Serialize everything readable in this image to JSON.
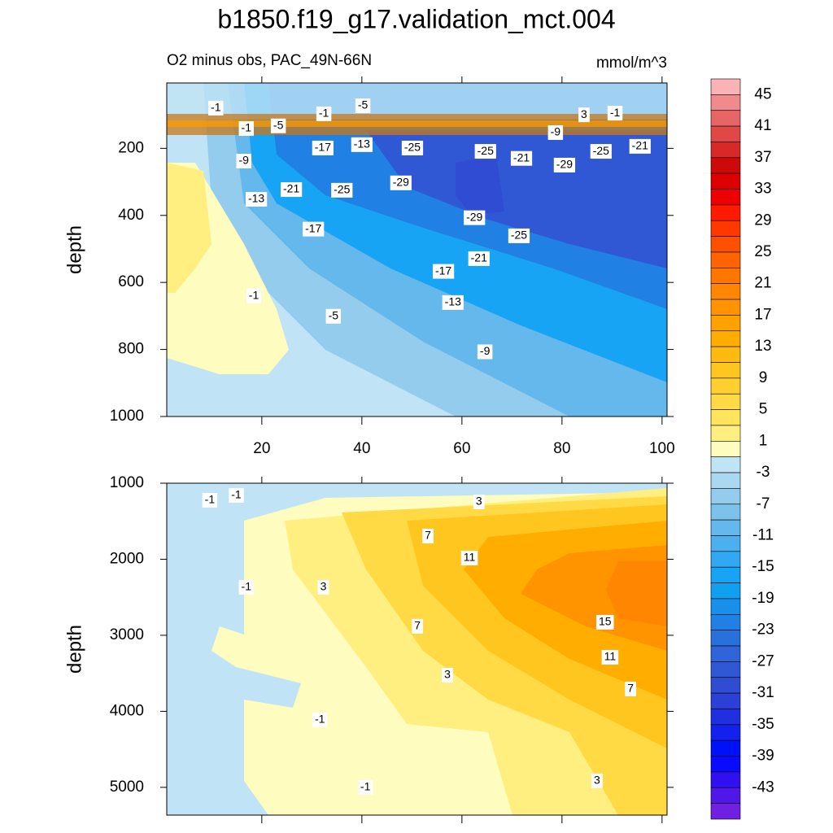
{
  "chart_data": {
    "type": "contour",
    "title": "b1850.f19_g17.validation_mct.004",
    "subtitle": "O2 minus obs, PAC_49N-66N",
    "units": "mmol/m^3",
    "xlim": [
      1,
      101
    ],
    "xticks": [
      20,
      40,
      60,
      80,
      100
    ],
    "panels": [
      {
        "ylabel": "depth",
        "ylim": [
          5,
          1000
        ],
        "y_reversed": true,
        "yticks": [
          200,
          400,
          600,
          800,
          1000
        ],
        "show_xtick_labels": true,
        "contour_labels": [
          {
            "x": 10.8,
            "depth": 80,
            "value": -1
          },
          {
            "x": 16.9,
            "depth": 141,
            "value": -1
          },
          {
            "x": 23.3,
            "depth": 133,
            "value": -5
          },
          {
            "x": 32.4,
            "depth": 97,
            "value": -1
          },
          {
            "x": 40.2,
            "depth": 73,
            "value": -5
          },
          {
            "x": 32.2,
            "depth": 199,
            "value": -17
          },
          {
            "x": 40.0,
            "depth": 189,
            "value": -13
          },
          {
            "x": 50.1,
            "depth": 199,
            "value": -25
          },
          {
            "x": 64.7,
            "depth": 209,
            "value": -25
          },
          {
            "x": 71.9,
            "depth": 230,
            "value": -21
          },
          {
            "x": 78.7,
            "depth": 153,
            "value": -9
          },
          {
            "x": 84.4,
            "depth": 100,
            "value": 3
          },
          {
            "x": 90.6,
            "depth": 95,
            "value": -1
          },
          {
            "x": 87.8,
            "depth": 209,
            "value": -25
          },
          {
            "x": 95.6,
            "depth": 194,
            "value": -21
          },
          {
            "x": 16.4,
            "depth": 238,
            "value": -9
          },
          {
            "x": 80.5,
            "depth": 250,
            "value": -29
          },
          {
            "x": 47.8,
            "depth": 303,
            "value": -29
          },
          {
            "x": 36.0,
            "depth": 325,
            "value": -25
          },
          {
            "x": 25.9,
            "depth": 323,
            "value": -21
          },
          {
            "x": 18.9,
            "depth": 352,
            "value": -13
          },
          {
            "x": 62.5,
            "depth": 407,
            "value": -29
          },
          {
            "x": 30.3,
            "depth": 441,
            "value": -17
          },
          {
            "x": 71.4,
            "depth": 461,
            "value": -25
          },
          {
            "x": 63.4,
            "depth": 529,
            "value": -21
          },
          {
            "x": 56.3,
            "depth": 567,
            "value": -17
          },
          {
            "x": 58.2,
            "depth": 660,
            "value": -13
          },
          {
            "x": 18.4,
            "depth": 640,
            "value": -1
          },
          {
            "x": 34.3,
            "depth": 701,
            "value": -5
          },
          {
            "x": 64.6,
            "depth": 807,
            "value": -9
          }
        ]
      },
      {
        "ylabel": "depth",
        "ylim": [
          1000,
          5365
        ],
        "y_reversed": true,
        "yticks": [
          1000,
          2000,
          3000,
          4000,
          5000
        ],
        "show_xtick_labels": false,
        "contour_labels": [
          {
            "x": 9.6,
            "depth": 1225,
            "value": -1
          },
          {
            "x": 14.9,
            "depth": 1160,
            "value": -1
          },
          {
            "x": 63.4,
            "depth": 1246,
            "value": 3
          },
          {
            "x": 53.2,
            "depth": 1695,
            "value": 7
          },
          {
            "x": 61.5,
            "depth": 1984,
            "value": 11
          },
          {
            "x": 16.9,
            "depth": 2369,
            "value": -1
          },
          {
            "x": 32.3,
            "depth": 2369,
            "value": 3
          },
          {
            "x": 51.1,
            "depth": 2882,
            "value": 7
          },
          {
            "x": 88.6,
            "depth": 2829,
            "value": 15
          },
          {
            "x": 89.6,
            "depth": 3289,
            "value": 11
          },
          {
            "x": 57.1,
            "depth": 3524,
            "value": 3
          },
          {
            "x": 93.7,
            "depth": 3706,
            "value": 7
          },
          {
            "x": 31.6,
            "depth": 4112,
            "value": -1
          },
          {
            "x": 40.7,
            "depth": 5000,
            "value": -1
          },
          {
            "x": 87.0,
            "depth": 4914,
            "value": 3
          }
        ]
      }
    ],
    "colorbar": {
      "levels": [
        45,
        43,
        41,
        39,
        37,
        35,
        33,
        31,
        29,
        27,
        25,
        23,
        21,
        19,
        17,
        15,
        13,
        11,
        9,
        7,
        5,
        3,
        1,
        -1,
        -3,
        -5,
        -7,
        -9,
        -11,
        -13,
        -15,
        -17,
        -19,
        -21,
        -23,
        -25,
        -27,
        -29,
        -31,
        -33,
        -35,
        -37,
        -39,
        -41,
        -43,
        -45
      ],
      "ticks": [
        45,
        41,
        37,
        33,
        29,
        25,
        21,
        17,
        13,
        9,
        5,
        1,
        -3,
        -7,
        -11,
        -15,
        -19,
        -23,
        -27,
        -31,
        -35,
        -39,
        -43
      ],
      "colors": [
        "#f9b3b6",
        "#f08a8c",
        "#e86566",
        "#e04848",
        "#d82828",
        "#cc0a0a",
        "#dd0000",
        "#ef0000",
        "#ff1a00",
        "#ff3800",
        "#ff5000",
        "#ff6400",
        "#ff7600",
        "#ff8600",
        "#ff9400",
        "#ffa200",
        "#ffae00",
        "#ffba10",
        "#ffc620",
        "#ffd030",
        "#ffda45",
        "#ffe45e",
        "#ffee80",
        "#fffcc0",
        "#c0e4f5",
        "#a9d8f0",
        "#93ccec",
        "#7cc2ea",
        "#64b8ec",
        "#4cb0ee",
        "#30a8f2",
        "#18a4f4",
        "#10a0f0",
        "#1890ea",
        "#2080e4",
        "#2870dc",
        "#3064d8",
        "#3058d4",
        "#304cd2",
        "#2c40d8",
        "#2030e0",
        "#1420ec",
        "#0010f8",
        "#0a0aff",
        "#3010f0",
        "#5018e8",
        "#7020e0"
      ]
    }
  }
}
